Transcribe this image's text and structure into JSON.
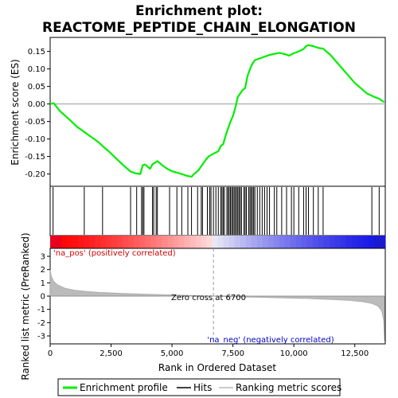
{
  "chart_data": {
    "type": "line",
    "title_line1": "Enrichment plot:",
    "title_line2": "REACTOME_PEPTIDE_CHAIN_ELONGATION",
    "top_panel": {
      "ylabel": "Enrichment score (ES)",
      "ylim": [
        -0.235,
        0.19
      ],
      "yticks": [
        0.15,
        0.1,
        0.05,
        0.0,
        -0.05,
        -0.1,
        -0.15,
        -0.2
      ],
      "ytick_labels": [
        "0.15",
        "0.10",
        "0.05",
        "0.00",
        "-0.05",
        "-0.10",
        "-0.15",
        "-0.20"
      ],
      "series_color": "#00ee00",
      "points": [
        [
          0,
          0.0
        ],
        [
          150,
          0.002
        ],
        [
          400,
          -0.02
        ],
        [
          800,
          -0.045
        ],
        [
          1100,
          -0.065
        ],
        [
          1400,
          -0.08
        ],
        [
          1700,
          -0.095
        ],
        [
          2000,
          -0.11
        ],
        [
          2150,
          -0.12
        ],
        [
          2400,
          -0.135
        ],
        [
          2700,
          -0.155
        ],
        [
          3000,
          -0.175
        ],
        [
          3300,
          -0.193
        ],
        [
          3500,
          -0.198
        ],
        [
          3700,
          -0.2
        ],
        [
          3800,
          -0.175
        ],
        [
          3900,
          -0.173
        ],
        [
          4100,
          -0.185
        ],
        [
          4200,
          -0.172
        ],
        [
          4300,
          -0.168
        ],
        [
          4400,
          -0.163
        ],
        [
          4600,
          -0.175
        ],
        [
          4800,
          -0.185
        ],
        [
          5000,
          -0.192
        ],
        [
          5200,
          -0.196
        ],
        [
          5400,
          -0.2
        ],
        [
          5600,
          -0.205
        ],
        [
          5800,
          -0.208
        ],
        [
          5900,
          -0.2
        ],
        [
          6000,
          -0.195
        ],
        [
          6100,
          -0.188
        ],
        [
          6200,
          -0.178
        ],
        [
          6300,
          -0.168
        ],
        [
          6400,
          -0.158
        ],
        [
          6500,
          -0.15
        ],
        [
          6700,
          -0.142
        ],
        [
          6900,
          -0.135
        ],
        [
          7000,
          -0.12
        ],
        [
          7100,
          -0.115
        ],
        [
          7200,
          -0.09
        ],
        [
          7300,
          -0.07
        ],
        [
          7400,
          -0.05
        ],
        [
          7500,
          -0.035
        ],
        [
          7600,
          -0.01
        ],
        [
          7700,
          0.02
        ],
        [
          7800,
          0.03
        ],
        [
          7900,
          0.04
        ],
        [
          8000,
          0.045
        ],
        [
          8100,
          0.08
        ],
        [
          8200,
          0.1
        ],
        [
          8300,
          0.115
        ],
        [
          8400,
          0.125
        ],
        [
          8600,
          0.13
        ],
        [
          8800,
          0.135
        ],
        [
          9000,
          0.14
        ],
        [
          9200,
          0.143
        ],
        [
          9400,
          0.146
        ],
        [
          9600,
          0.143
        ],
        [
          9800,
          0.138
        ],
        [
          10000,
          0.145
        ],
        [
          10200,
          0.15
        ],
        [
          10400,
          0.157
        ],
        [
          10500,
          0.165
        ],
        [
          10600,
          0.168
        ],
        [
          10800,
          0.165
        ],
        [
          11000,
          0.16
        ],
        [
          11200,
          0.158
        ],
        [
          11500,
          0.14
        ],
        [
          12000,
          0.1
        ],
        [
          12500,
          0.06
        ],
        [
          13000,
          0.03
        ],
        [
          13300,
          0.02
        ],
        [
          13500,
          0.015
        ],
        [
          13700,
          0.005
        ]
      ]
    },
    "hits": [
      120,
      1400,
      2150,
      3300,
      3550,
      3750,
      3800,
      3850,
      4200,
      4250,
      4350,
      4400,
      4900,
      5200,
      5400,
      5650,
      5800,
      6050,
      6200,
      6250,
      6450,
      6550,
      6600,
      6700,
      6800,
      6900,
      7000,
      7050,
      7100,
      7150,
      7250,
      7300,
      7350,
      7400,
      7450,
      7500,
      7550,
      7600,
      7650,
      7700,
      7750,
      7800,
      7850,
      7950,
      8000,
      8050,
      8150,
      8200,
      8250,
      8300,
      8350,
      8400,
      8500,
      8600,
      8700,
      8800,
      8900,
      9000,
      9200,
      9300,
      9500,
      9700,
      9900,
      10000,
      10200,
      10400,
      10500,
      10600,
      10800,
      11000,
      11200,
      13200,
      13500
    ],
    "bottom_panel": {
      "ylabel": "Ranked list metric (PreRanked)",
      "ylim": [
        -3.6,
        3.6
      ],
      "yticks": [
        3,
        2,
        1,
        0,
        -1,
        -2,
        -3
      ],
      "ytick_labels": [
        "3",
        "2",
        "1",
        "0",
        "-1",
        "-2",
        "-3"
      ],
      "metric_points": [
        [
          0,
          2.0
        ],
        [
          50,
          1.5
        ],
        [
          150,
          1.1
        ],
        [
          300,
          0.85
        ],
        [
          600,
          0.6
        ],
        [
          1000,
          0.45
        ],
        [
          1500,
          0.35
        ],
        [
          2000,
          0.28
        ],
        [
          3000,
          0.2
        ],
        [
          4000,
          0.14
        ],
        [
          5000,
          0.09
        ],
        [
          6000,
          0.04
        ],
        [
          6700,
          0.0
        ],
        [
          7500,
          -0.05
        ],
        [
          8500,
          -0.09
        ],
        [
          9500,
          -0.13
        ],
        [
          10500,
          -0.18
        ],
        [
          11500,
          -0.25
        ],
        [
          12300,
          -0.33
        ],
        [
          12800,
          -0.42
        ],
        [
          13200,
          -0.55
        ],
        [
          13450,
          -0.75
        ],
        [
          13600,
          -1.1
        ],
        [
          13680,
          -1.8
        ],
        [
          13720,
          -3.4
        ]
      ],
      "zero_cross_label": "Zero cross at 6700",
      "zero_cross": 6700,
      "pos_label": "'na_pos' (positively correlated)",
      "neg_label": "'na_neg' (negatively correlated)",
      "pos_color": "#cc0000",
      "neg_color": "#0000cc"
    },
    "xlabel": "Rank in Ordered Dataset",
    "xlim": [
      0,
      13750
    ],
    "xticks": [
      0,
      2500,
      5000,
      7500,
      10000,
      12500
    ],
    "xtick_labels": [
      "0",
      "2,500",
      "5,000",
      "7,500",
      "10,000",
      "12,500"
    ]
  },
  "legend": {
    "items": [
      {
        "label": "Enrichment profile",
        "color": "#00ee00"
      },
      {
        "label": "Hits",
        "color": "#000000"
      },
      {
        "label": "Ranking metric scores",
        "color": "#bbbbbb"
      }
    ]
  }
}
